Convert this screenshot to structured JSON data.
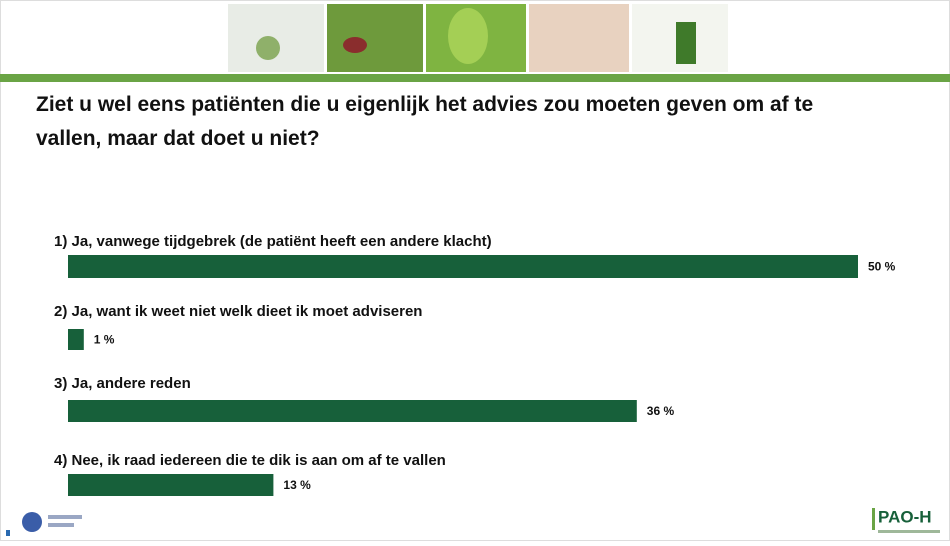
{
  "chart_data": {
    "type": "bar",
    "orientation": "horizontal",
    "title": "Ziet u wel eens patiënten die u eigenlijk het advies zou moeten geven om af te vallen, maar dat doet u niet?",
    "categories": [
      "1) Ja, vanwege tijdgebrek (de patiënt heeft een andere klacht)",
      "2) Ja, want ik weet niet welk dieet ik moet adviseren",
      "3) Ja, andere reden",
      "4) Nee, ik raad iedereen die te dik is aan om af te vallen"
    ],
    "values": [
      50,
      1,
      36,
      13
    ],
    "value_labels": [
      "50 %",
      "1 %",
      "36 %",
      "13 %"
    ],
    "color": "#17603a"
  },
  "footer": {
    "logo": "PAO-H"
  }
}
